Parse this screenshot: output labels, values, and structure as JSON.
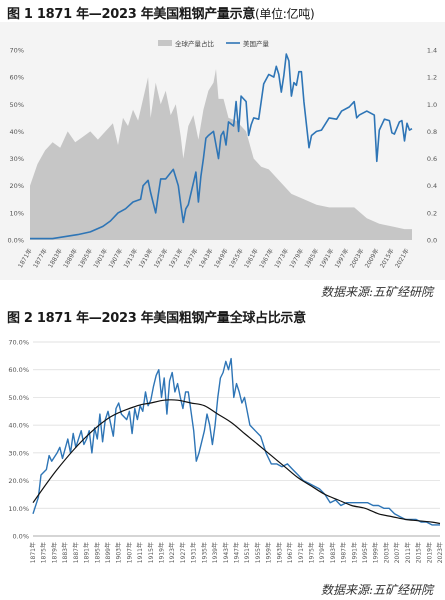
{
  "figure1": {
    "title": "图 1 1871 年—2023 年美国粗钢产量示意",
    "unit": "(单位:亿吨)",
    "source": "数据来源:五矿经研院"
  },
  "figure2": {
    "title": "图 2 1871 年—2023 年美国粗钢产量全球占比示意",
    "source": "数据来源:五矿经研院"
  },
  "colors": {
    "share_area": "#c6c6c6",
    "us_line": "#2e75b6",
    "trend_line": "#111111",
    "grid": "#d9d9d9"
  },
  "chart_data": [
    {
      "type": "area",
      "series": [
        {
          "name": "全球产量占比",
          "kind": "area",
          "axis": "left",
          "x": [
            1871,
            1874,
            1877,
            1880,
            1883,
            1886,
            1889,
            1892,
            1895,
            1898,
            1901,
            1904,
            1906,
            1908,
            1910,
            1912,
            1914,
            1916,
            1918,
            1919,
            1921,
            1923,
            1925,
            1927,
            1929,
            1931,
            1932,
            1934,
            1936,
            1938,
            1940,
            1942,
            1944,
            1945,
            1946,
            1948,
            1950,
            1953,
            1957,
            1960,
            1963,
            1966,
            1970,
            1975,
            1980,
            1985,
            1990,
            1995,
            2000,
            2005,
            2010,
            2015,
            2020,
            2023
          ],
          "values": [
            0.2,
            0.28,
            0.33,
            0.36,
            0.34,
            0.4,
            0.36,
            0.38,
            0.4,
            0.37,
            0.4,
            0.43,
            0.35,
            0.45,
            0.42,
            0.48,
            0.44,
            0.52,
            0.6,
            0.45,
            0.58,
            0.5,
            0.55,
            0.46,
            0.5,
            0.38,
            0.3,
            0.42,
            0.46,
            0.37,
            0.48,
            0.55,
            0.58,
            0.63,
            0.52,
            0.52,
            0.45,
            0.44,
            0.4,
            0.3,
            0.27,
            0.26,
            0.22,
            0.17,
            0.15,
            0.13,
            0.12,
            0.12,
            0.12,
            0.08,
            0.06,
            0.05,
            0.04,
            0.04
          ]
        },
        {
          "name": "美国产量",
          "kind": "line",
          "axis": "right",
          "x": [
            1871,
            1880,
            1890,
            1895,
            1900,
            1903,
            1906,
            1909,
            1912,
            1915,
            1916,
            1918,
            1919,
            1921,
            1922,
            1923,
            1925,
            1928,
            1930,
            1931,
            1932,
            1933,
            1934,
            1935,
            1937,
            1938,
            1939,
            1940,
            1941,
            1942,
            1944,
            1946,
            1947,
            1948,
            1949,
            1950,
            1952,
            1953,
            1954,
            1955,
            1956,
            1957,
            1958,
            1959,
            1960,
            1962,
            1964,
            1966,
            1968,
            1969,
            1970,
            1971,
            1972,
            1973,
            1974,
            1975,
            1976,
            1977,
            1978,
            1979,
            1980,
            1982,
            1983,
            1985,
            1987,
            1990,
            1993,
            1995,
            1998,
            2000,
            2001,
            2002,
            2005,
            2008,
            2009,
            2010,
            2012,
            2014,
            2015,
            2016,
            2018,
            2019,
            2020,
            2021,
            2022,
            2023
          ],
          "values": [
            0.01,
            0.01,
            0.04,
            0.06,
            0.1,
            0.14,
            0.2,
            0.23,
            0.28,
            0.3,
            0.4,
            0.44,
            0.35,
            0.2,
            0.33,
            0.45,
            0.45,
            0.52,
            0.4,
            0.26,
            0.13,
            0.23,
            0.26,
            0.34,
            0.5,
            0.28,
            0.47,
            0.6,
            0.75,
            0.77,
            0.8,
            0.6,
            0.77,
            0.8,
            0.7,
            0.87,
            0.84,
            1.02,
            0.8,
            1.06,
            1.04,
            1.02,
            0.77,
            0.85,
            0.9,
            0.89,
            1.15,
            1.22,
            1.2,
            1.28,
            1.22,
            1.09,
            1.21,
            1.37,
            1.32,
            1.06,
            1.16,
            1.14,
            1.24,
            1.24,
            1.02,
            0.68,
            0.77,
            0.8,
            0.81,
            0.9,
            0.89,
            0.95,
            0.98,
            1.02,
            0.9,
            0.92,
            0.95,
            0.92,
            0.58,
            0.81,
            0.89,
            0.88,
            0.79,
            0.78,
            0.87,
            0.88,
            0.73,
            0.86,
            0.81,
            0.82
          ]
        }
      ],
      "xlim": [
        1871,
        2023
      ],
      "ylim_left": [
        0,
        0.7
      ],
      "ylim_right": [
        0,
        1.4
      ],
      "y_ticks_left": [
        "0.0%",
        "10%",
        "20%",
        "30%",
        "40%",
        "50%",
        "60%",
        "70%"
      ],
      "y_ticks_right": [
        "0.0",
        "0.2",
        "0.4",
        "0.6",
        "0.8",
        "1.0",
        "1.2",
        "1.4"
      ],
      "x_ticks": [
        "1871年",
        "1877年",
        "1883年",
        "1889年",
        "1895年",
        "1901年",
        "1907年",
        "1913年",
        "1919年",
        "1925年",
        "1931年",
        "1937年",
        "1943年",
        "1949年",
        "1955年",
        "1961年",
        "1967年",
        "1973年",
        "1979年",
        "1985年",
        "1991年",
        "1997年",
        "2003年",
        "2009年",
        "2015年",
        "2021年"
      ],
      "legend": {
        "placement": "top-center",
        "entries": [
          "全球产量占比",
          "美国产量"
        ]
      },
      "grid": false
    },
    {
      "type": "line",
      "series": [
        {
          "kind": "line",
          "x": [
            1871,
            1873,
            1874,
            1876,
            1877,
            1878,
            1880,
            1881,
            1882,
            1884,
            1885,
            1886,
            1887,
            1889,
            1890,
            1891,
            1892,
            1893,
            1894,
            1895,
            1896,
            1897,
            1898,
            1899,
            1901,
            1902,
            1903,
            1904,
            1906,
            1907,
            1908,
            1909,
            1910,
            1911,
            1912,
            1913,
            1914,
            1915,
            1916,
            1917,
            1918,
            1919,
            1920,
            1921,
            1922,
            1923,
            1924,
            1925,
            1926,
            1927,
            1928,
            1929,
            1930,
            1931,
            1932,
            1933,
            1934,
            1935,
            1936,
            1937,
            1938,
            1939,
            1940,
            1941,
            1942,
            1943,
            1944,
            1945,
            1946,
            1947,
            1948,
            1949,
            1950,
            1952,
            1954,
            1956,
            1958,
            1960,
            1962,
            1964,
            1966,
            1968,
            1970,
            1972,
            1974,
            1976,
            1978,
            1980,
            1982,
            1984,
            1986,
            1988,
            1990,
            1992,
            1994,
            1996,
            1998,
            2000,
            2002,
            2004,
            2006,
            2008,
            2010,
            2012,
            2014,
            2016,
            2018,
            2020,
            2022,
            2023
          ],
          "values": [
            0.08,
            0.14,
            0.22,
            0.24,
            0.29,
            0.27,
            0.3,
            0.32,
            0.28,
            0.35,
            0.3,
            0.37,
            0.32,
            0.38,
            0.33,
            0.35,
            0.38,
            0.3,
            0.39,
            0.35,
            0.44,
            0.34,
            0.42,
            0.45,
            0.36,
            0.46,
            0.48,
            0.44,
            0.42,
            0.45,
            0.37,
            0.46,
            0.42,
            0.47,
            0.45,
            0.52,
            0.47,
            0.49,
            0.54,
            0.58,
            0.6,
            0.5,
            0.57,
            0.44,
            0.56,
            0.59,
            0.52,
            0.55,
            0.5,
            0.46,
            0.52,
            0.52,
            0.45,
            0.38,
            0.27,
            0.3,
            0.34,
            0.38,
            0.44,
            0.4,
            0.33,
            0.4,
            0.5,
            0.57,
            0.59,
            0.63,
            0.6,
            0.64,
            0.5,
            0.55,
            0.52,
            0.48,
            0.5,
            0.4,
            0.38,
            0.36,
            0.3,
            0.26,
            0.26,
            0.25,
            0.26,
            0.24,
            0.22,
            0.2,
            0.19,
            0.18,
            0.17,
            0.15,
            0.12,
            0.13,
            0.11,
            0.12,
            0.12,
            0.12,
            0.12,
            0.12,
            0.11,
            0.11,
            0.1,
            0.1,
            0.08,
            0.07,
            0.06,
            0.06,
            0.06,
            0.05,
            0.05,
            0.04,
            0.04,
            0.04
          ]
        },
        {
          "kind": "trend",
          "x": [
            1871,
            1880,
            1890,
            1900,
            1910,
            1915,
            1920,
            1925,
            1930,
            1935,
            1940,
            1945,
            1950,
            1955,
            1960,
            1965,
            1970,
            1975,
            1980,
            1985,
            1990,
            1995,
            2000,
            2005,
            2010,
            2015,
            2020,
            2023
          ],
          "values": [
            0.12,
            0.24,
            0.35,
            0.43,
            0.47,
            0.48,
            0.49,
            0.49,
            0.48,
            0.47,
            0.44,
            0.41,
            0.37,
            0.33,
            0.29,
            0.25,
            0.21,
            0.18,
            0.15,
            0.13,
            0.11,
            0.1,
            0.08,
            0.07,
            0.06,
            0.055,
            0.05,
            0.045
          ]
        }
      ],
      "xlim": [
        1871,
        2023
      ],
      "ylim": [
        0,
        0.7
      ],
      "y_ticks": [
        "0.0%",
        "10.0%",
        "20.0%",
        "30.0%",
        "40.0%",
        "50.0%",
        "60.0%",
        "70.0%"
      ],
      "x_ticks": [
        "1871年",
        "1875年",
        "1879年",
        "1883年",
        "1887年",
        "1891年",
        "1895年",
        "1899年",
        "1903年",
        "1907年",
        "1911年",
        "1915年",
        "1919年",
        "1923年",
        "1927年",
        "1931年",
        "1935年",
        "1939年",
        "1943年",
        "1947年",
        "1951年",
        "1955年",
        "1959年",
        "1963年",
        "1967年",
        "1971年",
        "1975年",
        "1979年",
        "1983年",
        "1987年",
        "1991年",
        "1995年",
        "1999年",
        "2003年",
        "2007年",
        "2011年",
        "2015年",
        "2019年",
        "2023年"
      ],
      "grid": true
    }
  ]
}
